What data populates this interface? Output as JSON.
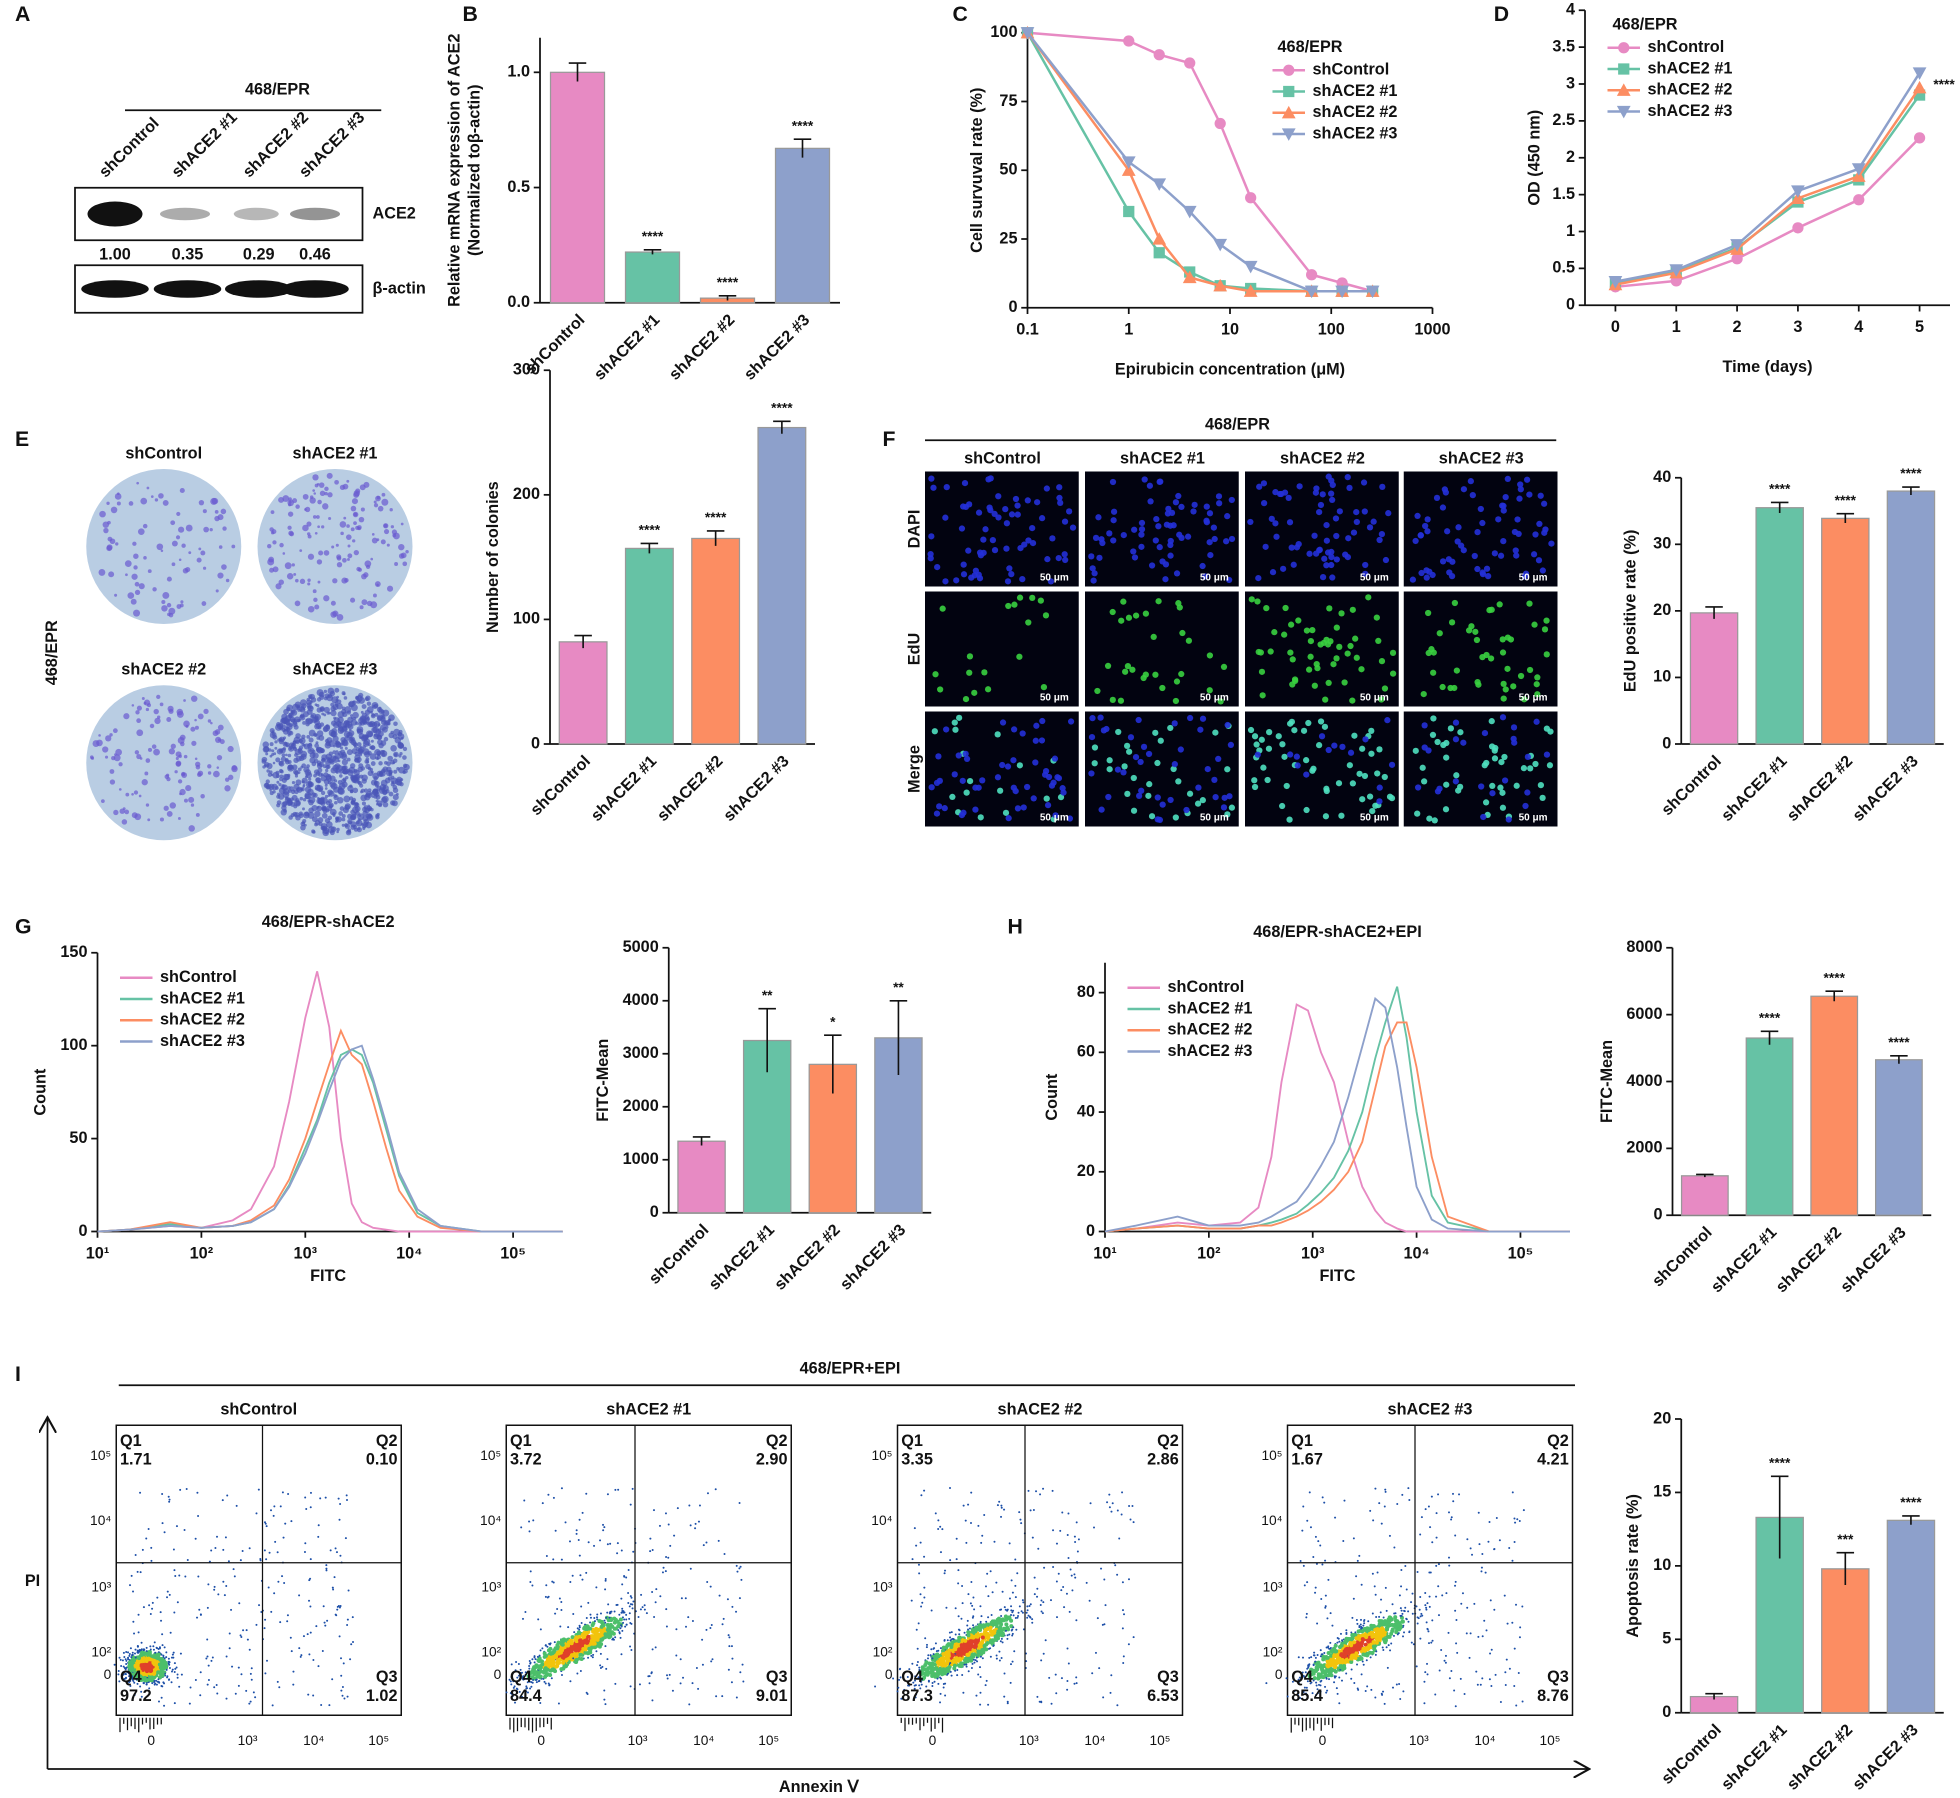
{
  "panel_letters": [
    "A",
    "B",
    "C",
    "D",
    "E",
    "F",
    "G",
    "H",
    "I"
  ],
  "blot": {
    "title": "468/EPR",
    "lanes": [
      "shControl",
      "shACE2 #1",
      "shACE2 #2",
      "shACE2 #3"
    ],
    "proteins": [
      "ACE2",
      "β-actin"
    ],
    "ratios": [
      "1.00",
      "0.35",
      "0.29",
      "0.46"
    ]
  },
  "colony": {
    "side_label": "468/EPR",
    "labels": [
      "shControl",
      "shACE2 #1",
      "shACE2 #2",
      "shACE2 #3"
    ]
  },
  "edu": {
    "title": "468/EPR",
    "columns": [
      "shControl",
      "shACE2 #1",
      "shACE2 #2",
      "shACE2 #3"
    ],
    "rows": [
      "DAPI",
      "EdU",
      "Merge"
    ],
    "scale_bar": "50 μm"
  },
  "flow": {
    "title": "468/EPR+EPI",
    "x_label": "Annexin Ⅴ",
    "y_label": "PI",
    "x_ticks": [
      "0",
      "10³",
      "10⁴",
      "10⁵"
    ],
    "y_ticks": [
      "10⁵",
      "10⁴",
      "10³",
      "10²",
      "0"
    ],
    "plots": [
      {
        "name": "shControl",
        "quadrants": [
          {
            "label": "Q1",
            "value": "1.71"
          },
          {
            "label": "Q2",
            "value": "0.10"
          },
          {
            "label": "Q3",
            "value": "1.02"
          },
          {
            "label": "Q4",
            "value": "97.2"
          }
        ]
      },
      {
        "name": "shACE2 #1",
        "quadrants": [
          {
            "label": "Q1",
            "value": "3.72"
          },
          {
            "label": "Q2",
            "value": "2.90"
          },
          {
            "label": "Q3",
            "value": "9.01"
          },
          {
            "label": "Q4",
            "value": "84.4"
          }
        ]
      },
      {
        "name": "shACE2 #2",
        "quadrants": [
          {
            "label": "Q1",
            "value": "3.35"
          },
          {
            "label": "Q2",
            "value": "2.86"
          },
          {
            "label": "Q3",
            "value": "6.53"
          },
          {
            "label": "Q4",
            "value": "87.3"
          }
        ]
      },
      {
        "name": "shACE2 #3",
        "quadrants": [
          {
            "label": "Q1",
            "value": "1.67"
          },
          {
            "label": "Q2",
            "value": "4.21"
          },
          {
            "label": "Q3",
            "value": "8.76"
          },
          {
            "label": "Q4",
            "value": "85.4"
          }
        ]
      }
    ]
  },
  "chart_data": [
    {
      "type": "bar",
      "y_label": [
        "Relative mRNA expression of ACE2",
        "(Normalized toβ-actin)"
      ],
      "categories": [
        "shControl",
        "shACE2 #1",
        "shACE2 #2",
        "shACE2 #3"
      ],
      "values": [
        1.0,
        0.22,
        0.02,
        0.67
      ],
      "errors": [
        0.04,
        0.01,
        0.01,
        0.04
      ],
      "significance": [
        null,
        "****",
        "****",
        "****"
      ],
      "colors": [
        "#e78ac3",
        "#66c2a5",
        "#fc8d62",
        "#8da0cb"
      ],
      "ylim": [
        0,
        1.15
      ],
      "yticks": [
        {
          "value": 0,
          "label": "0.0"
        },
        0.5,
        {
          "value": 1,
          "label": "1.0"
        }
      ]
    },
    {
      "type": "line",
      "x_label": "Epirubicin concentration (μM)",
      "y_label": "Cell survuval rate (%)",
      "legend_title": "468/EPR",
      "legend": "upper-right",
      "xscale": "log",
      "x": [
        0.1,
        1,
        2,
        4,
        8,
        16,
        64,
        128,
        256
      ],
      "xlim": [
        0.1,
        1000
      ],
      "xticks": [
        0.1,
        1,
        10,
        100,
        1000
      ],
      "ylim": [
        0,
        100
      ],
      "yticks": [
        0,
        25,
        50,
        75,
        100
      ],
      "series": [
        {
          "name": "shControl",
          "color": "#e78ac3",
          "marker": "circle",
          "values": [
            100,
            97,
            92,
            89,
            67,
            40,
            12,
            9,
            6
          ]
        },
        {
          "name": "shACE2 #1",
          "color": "#66c2a5",
          "marker": "square",
          "values": [
            100,
            35,
            20,
            13,
            8,
            7,
            6,
            6,
            6
          ]
        },
        {
          "name": "shACE2 #2",
          "color": "#fc8d62",
          "marker": "triangle",
          "values": [
            100,
            50,
            25,
            11,
            8,
            6,
            6,
            6,
            6
          ]
        },
        {
          "name": "shACE2 #3",
          "color": "#8da0cb",
          "marker": "triangle-down",
          "values": [
            100,
            53,
            45,
            35,
            23,
            15,
            6,
            6,
            6
          ]
        }
      ]
    },
    {
      "type": "line",
      "x_label": "Time (days)",
      "y_label": "OD (450 nm)",
      "legend_title": "468/EPR",
      "legend": "upper-left",
      "annotation": "****",
      "x": [
        0,
        1,
        2,
        3,
        4,
        5
      ],
      "xlim": [
        -0.5,
        5.5
      ],
      "xticks": [
        0,
        1,
        2,
        3,
        4,
        5
      ],
      "ylim": [
        0,
        4
      ],
      "yticks": [
        0,
        0.5,
        1,
        1.5,
        2,
        2.5,
        3,
        3.5,
        4
      ],
      "series": [
        {
          "name": "shControl",
          "color": "#e78ac3",
          "marker": "circle",
          "values": [
            0.25,
            0.33,
            0.63,
            1.05,
            1.43,
            2.27
          ]
        },
        {
          "name": "shACE2 #1",
          "color": "#66c2a5",
          "marker": "square",
          "values": [
            0.3,
            0.45,
            0.78,
            1.4,
            1.7,
            2.85
          ]
        },
        {
          "name": "shACE2 #2",
          "color": "#fc8d62",
          "marker": "triangle",
          "values": [
            0.28,
            0.44,
            0.76,
            1.45,
            1.75,
            2.95
          ]
        },
        {
          "name": "shACE2 #3",
          "color": "#8da0cb",
          "marker": "triangle-down",
          "values": [
            0.32,
            0.48,
            0.82,
            1.55,
            1.85,
            3.15
          ]
        }
      ]
    },
    {
      "type": "bar",
      "y_label": "Number of colonies",
      "categories": [
        "shControl",
        "shACE2 #1",
        "shACE2 #2",
        "shACE2 #3"
      ],
      "values": [
        82,
        157,
        165,
        254
      ],
      "errors": [
        5,
        4,
        6,
        5
      ],
      "significance": [
        null,
        "****",
        "****",
        "****"
      ],
      "colors": [
        "#e78ac3",
        "#66c2a5",
        "#fc8d62",
        "#8da0cb"
      ],
      "ylim": [
        0,
        300
      ],
      "yticks": [
        0,
        100,
        200,
        300
      ]
    },
    {
      "type": "bar",
      "y_label": "EdU positive rate (%)",
      "categories": [
        "shControl",
        "shACE2 #1",
        "shACE2 #2",
        "shACE2 #3"
      ],
      "values": [
        19.7,
        35.5,
        33.9,
        38
      ],
      "errors": [
        0.9,
        0.8,
        0.7,
        0.6
      ],
      "significance": [
        null,
        "****",
        "****",
        "****"
      ],
      "colors": [
        "#e78ac3",
        "#66c2a5",
        "#fc8d62",
        "#8da0cb"
      ],
      "ylim": [
        0,
        40
      ],
      "yticks": [
        0,
        10,
        20,
        30,
        40
      ]
    },
    {
      "type": "line",
      "title": "468/EPR-shACE2",
      "x_label": "FITC",
      "y_label": "Count",
      "legend": "upper-left",
      "xscale": "log",
      "x": [
        10,
        20,
        50,
        100,
        200,
        300,
        500,
        700,
        1000,
        1300,
        1700,
        2200,
        2800,
        3500,
        4500,
        6000,
        8000,
        12000,
        20000,
        50000,
        300000
      ],
      "xlim": [
        10,
        275000
      ],
      "xticks": [
        {
          "value": 10,
          "label": "10¹"
        },
        {
          "value": 100,
          "label": "10²"
        },
        {
          "value": 1000,
          "label": "10³"
        },
        {
          "value": 10000,
          "label": "10⁴"
        },
        {
          "value": 100000,
          "label": "10⁵"
        }
      ],
      "ylim": [
        0,
        150
      ],
      "yticks": [
        0,
        50,
        100,
        150
      ],
      "series": [
        {
          "name": "shControl",
          "color": "#e78ac3",
          "values": [
            0,
            1,
            3,
            2,
            6,
            12,
            35,
            70,
            115,
            140,
            110,
            50,
            15,
            5,
            2,
            1,
            0,
            0,
            0,
            0,
            0
          ]
        },
        {
          "name": "shACE2 #1",
          "color": "#66c2a5",
          "values": [
            0,
            1,
            4,
            2,
            3,
            5,
            12,
            25,
            45,
            60,
            80,
            95,
            98,
            95,
            80,
            55,
            30,
            10,
            3,
            0,
            0
          ]
        },
        {
          "name": "shACE2 #2",
          "color": "#fc8d62",
          "values": [
            0,
            1,
            5,
            2,
            3,
            6,
            14,
            28,
            50,
            70,
            90,
            108,
            95,
            90,
            70,
            45,
            22,
            8,
            2,
            0,
            0
          ]
        },
        {
          "name": "shACE2 #3",
          "color": "#8da0cb",
          "values": [
            0,
            1,
            3,
            2,
            3,
            5,
            12,
            24,
            42,
            58,
            76,
            92,
            98,
            100,
            82,
            58,
            32,
            12,
            3,
            0,
            0
          ]
        }
      ]
    },
    {
      "type": "bar",
      "y_label": "FITC-Mean",
      "categories": [
        "shControl",
        "shACE2 #1",
        "shACE2 #2",
        "shACE2 #3"
      ],
      "values": [
        1350,
        3250,
        2800,
        3300
      ],
      "errors": [
        80,
        600,
        550,
        700
      ],
      "significance": [
        null,
        "**",
        "*",
        "**"
      ],
      "colors": [
        "#e78ac3",
        "#66c2a5",
        "#fc8d62",
        "#8da0cb"
      ],
      "ylim": [
        0,
        5000
      ],
      "yticks": [
        0,
        1000,
        2000,
        3000,
        4000,
        5000
      ]
    },
    {
      "type": "line",
      "title": "468/EPR-shACE2+EPI",
      "x_label": "FITC",
      "y_label": "Count",
      "legend": "upper-left",
      "xscale": "log",
      "x": [
        10,
        20,
        50,
        100,
        200,
        300,
        400,
        500,
        700,
        900,
        1200,
        1600,
        2200,
        3000,
        4000,
        5000,
        6500,
        8000,
        10000,
        14000,
        20000,
        50000,
        300000
      ],
      "xlim": [
        10,
        300000
      ],
      "xticks": [
        {
          "value": 10,
          "label": "10¹"
        },
        {
          "value": 100,
          "label": "10²"
        },
        {
          "value": 1000,
          "label": "10³"
        },
        {
          "value": 10000,
          "label": "10⁴"
        },
        {
          "value": 100000,
          "label": "10⁵"
        }
      ],
      "ylim": [
        0,
        90
      ],
      "yticks": [
        0,
        20,
        40,
        60,
        80
      ],
      "series": [
        {
          "name": "shControl",
          "color": "#e78ac3",
          "values": [
            0,
            1,
            3,
            2,
            3,
            8,
            25,
            50,
            76,
            74,
            60,
            50,
            30,
            15,
            7,
            3,
            1,
            0,
            0,
            0,
            0,
            0,
            0
          ]
        },
        {
          "name": "shACE2 #1",
          "color": "#66c2a5",
          "values": [
            0,
            1,
            2,
            1,
            1,
            2,
            3,
            4,
            6,
            9,
            13,
            18,
            27,
            40,
            58,
            70,
            82,
            65,
            40,
            12,
            3,
            0,
            0
          ]
        },
        {
          "name": "shACE2 #2",
          "color": "#fc8d62",
          "values": [
            0,
            1,
            2,
            1,
            1,
            2,
            2,
            3,
            5,
            7,
            10,
            14,
            20,
            30,
            48,
            62,
            70,
            70,
            55,
            25,
            5,
            0,
            0
          ]
        },
        {
          "name": "shACE2 #3",
          "color": "#8da0cb",
          "values": [
            0,
            2,
            5,
            2,
            2,
            3,
            5,
            7,
            10,
            15,
            22,
            30,
            45,
            62,
            78,
            75,
            55,
            35,
            15,
            4,
            1,
            0,
            0
          ]
        }
      ]
    },
    {
      "type": "bar",
      "y_label": "FITC-Mean",
      "categories": [
        "shControl",
        "shACE2 #1",
        "shACE2 #2",
        "shACE2 #3"
      ],
      "values": [
        1180,
        5300,
        6550,
        4650
      ],
      "errors": [
        40,
        200,
        150,
        120
      ],
      "significance": [
        null,
        "****",
        "****",
        "****"
      ],
      "colors": [
        "#e78ac3",
        "#66c2a5",
        "#fc8d62",
        "#8da0cb"
      ],
      "ylim": [
        0,
        8000
      ],
      "yticks": [
        0,
        2000,
        4000,
        6000,
        8000
      ]
    },
    {
      "type": "bar",
      "y_label": "Apoptosis rate (%)",
      "categories": [
        "shControl",
        "shACE2 #1",
        "shACE2 #2",
        "shACE2 #3"
      ],
      "values": [
        1.1,
        13.3,
        9.8,
        13.1
      ],
      "errors": [
        0.2,
        2.8,
        1.1,
        0.3
      ],
      "significance": [
        null,
        "****",
        "***",
        "****"
      ],
      "colors": [
        "#e78ac3",
        "#66c2a5",
        "#fc8d62",
        "#8da0cb"
      ],
      "ylim": [
        0,
        20
      ],
      "yticks": [
        0,
        5,
        10,
        15,
        20
      ]
    }
  ]
}
